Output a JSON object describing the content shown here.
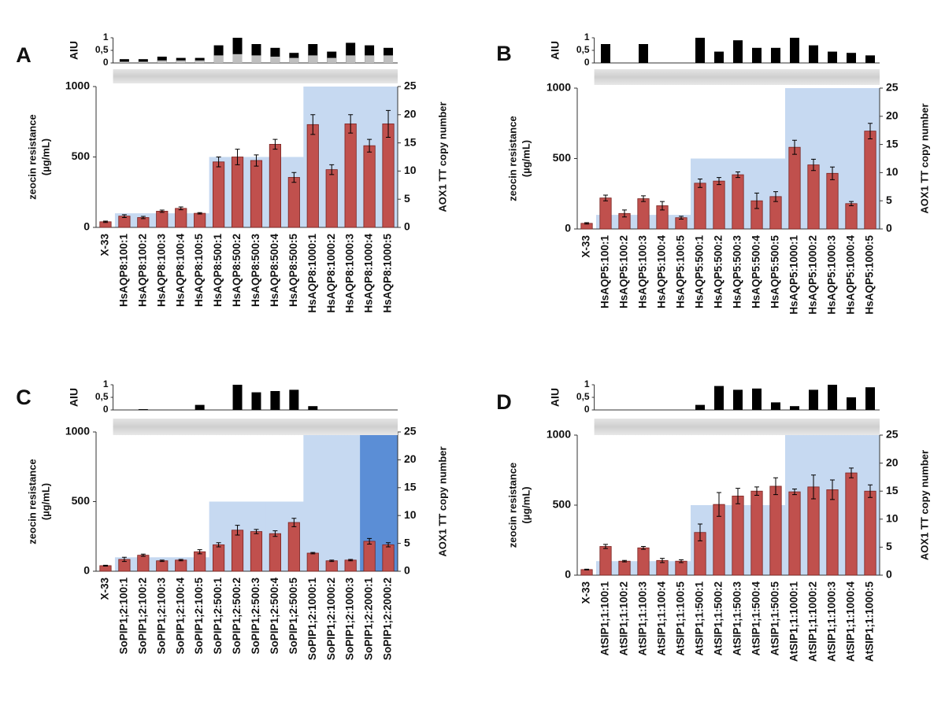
{
  "chart_data": [
    {
      "type": "bar",
      "panel": "A",
      "categories": [
        "X-33",
        "HsAQP8:100:1",
        "HsAQP8:100:2",
        "HsAQP8:100:3",
        "HsAQP8:100:4",
        "HsAQP8:100:5",
        "HsAQP8:500:1",
        "HsAQP8:500:2",
        "HsAQP8:500:3",
        "HsAQP8:500:4",
        "HsAQP8:500:5",
        "HsAQP8:1000:1",
        "HsAQP8:1000:2",
        "HsAQP8:1000:3",
        "HsAQP8:1000:4",
        "HsAQP8:1000:5"
      ],
      "values": [
        40,
        80,
        70,
        115,
        135,
        100,
        465,
        500,
        475,
        590,
        355,
        730,
        410,
        735,
        580,
        735
      ],
      "errors": [
        5,
        10,
        8,
        8,
        10,
        5,
        35,
        55,
        40,
        35,
        35,
        70,
        35,
        65,
        45,
        95
      ],
      "color": "#c0504d",
      "selection": {
        "values": [
          null,
          100,
          100,
          100,
          100,
          100,
          500,
          500,
          500,
          500,
          500,
          1000,
          1000,
          1000,
          1000,
          1000
        ],
        "color": "#c6d9f1",
        "overflow_color": "#5b8ed6"
      },
      "ylabel": [
        "zeocin resistance",
        "(µg/mL)"
      ],
      "ylim": [
        0,
        1000
      ],
      "yticks": [
        0,
        500,
        1000
      ],
      "y2label": "AOX1 TT copy number",
      "y2lim": [
        0,
        25
      ],
      "y2ticks": [
        0,
        5,
        10,
        15,
        20,
        25
      ],
      "aiu": {
        "label": "AIU",
        "ylim": [
          0,
          1
        ],
        "yticks": [
          0,
          {
            "value": 0.5,
            "label": "0,5"
          },
          1
        ],
        "values": [
          null,
          0.15,
          0.15,
          0.25,
          0.2,
          0.2,
          0.7,
          1.0,
          0.75,
          0.6,
          0.4,
          0.75,
          0.45,
          0.8,
          0.7,
          0.6
        ],
        "color": "#000000",
        "values2": [
          null,
          0.05,
          0.05,
          0.1,
          0.1,
          0.1,
          0.3,
          0.35,
          0.3,
          0.25,
          0.2,
          0.3,
          0.2,
          0.3,
          0.3,
          0.3
        ],
        "color2": "#bfbfbf"
      }
    },
    {
      "type": "bar",
      "panel": "B",
      "categories": [
        "X-33",
        "HsAQP5:100:1",
        "HsAQP5:100:2",
        "HsAQP5:100:3",
        "HsAQP5:100:4",
        "HsAQP5:100:5",
        "HsAQP5:500:1",
        "HsAQP5:500:2",
        "HsAQP5:500:3",
        "HsAQP5:500:4",
        "HsAQP5:500:5",
        "HsAQP5:1000:1",
        "HsAQP5:1000:2",
        "HsAQP5:1000:3",
        "HsAQP5:1000:4",
        "HsAQP5:1000:5"
      ],
      "values": [
        40,
        220,
        110,
        215,
        165,
        80,
        325,
        340,
        385,
        200,
        230,
        580,
        455,
        395,
        180,
        695
      ],
      "errors": [
        5,
        20,
        25,
        20,
        30,
        10,
        30,
        25,
        20,
        55,
        35,
        50,
        40,
        45,
        15,
        55
      ],
      "color": "#c0504d",
      "selection": {
        "values": [
          null,
          100,
          100,
          100,
          100,
          100,
          500,
          500,
          500,
          500,
          500,
          1000,
          1000,
          1000,
          1000,
          1000
        ],
        "color": "#c6d9f1",
        "overflow_color": "#5b8ed6"
      },
      "ylabel": [
        "zeocin resistance",
        "(µg/mL)"
      ],
      "ylim": [
        0,
        1000
      ],
      "yticks": [
        0,
        500,
        1000
      ],
      "y2label": "AOX1 TT copy number",
      "y2lim": [
        0,
        25
      ],
      "y2ticks": [
        0,
        5,
        10,
        15,
        20,
        25
      ],
      "aiu": {
        "label": "AIU",
        "ylim": [
          0,
          1
        ],
        "yticks": [
          0,
          {
            "value": 0.5,
            "label": "0,5"
          },
          1
        ],
        "values": [
          null,
          0.75,
          0,
          0.75,
          0,
          0,
          1.0,
          0.45,
          0.9,
          0.6,
          0.6,
          1.0,
          0.7,
          0.45,
          0.4,
          0.3
        ],
        "color": "#000000"
      }
    },
    {
      "type": "bar",
      "panel": "C",
      "categories": [
        "X-33",
        "SoPIP1;2:100:1",
        "SoPIP1;2:100:2",
        "SoPIP1;2:100:3",
        "SoPIP1;2:100:4",
        "SoPIP1;2:100:5",
        "SoPIP1;2:500:1",
        "SoPIP1;2:500:2",
        "SoPIP1;2:500:3",
        "SoPIP1;2:500:4",
        "SoPIP1;2:500:5",
        "SoPIP1;2:1000:1",
        "SoPIP1;2:1000:2",
        "SoPIP1;2:1000:3",
        "SoPIP1;2:2000:1",
        "SoPIP1;2:2000:2"
      ],
      "values": [
        40,
        85,
        115,
        75,
        80,
        140,
        190,
        295,
        285,
        270,
        350,
        130,
        75,
        80,
        215,
        190
      ],
      "errors": [
        3,
        15,
        8,
        5,
        5,
        15,
        15,
        35,
        15,
        20,
        30,
        5,
        5,
        5,
        20,
        15
      ],
      "color": "#c0504d",
      "selection": {
        "values": [
          null,
          100,
          100,
          100,
          100,
          100,
          500,
          500,
          500,
          500,
          500,
          1000,
          1000,
          1000,
          2000,
          2000
        ],
        "color": "#c6d9f1",
        "overflow_color": "#5b8ed6"
      },
      "ylabel": [
        "zeocin resistance",
        "(µg/mL)"
      ],
      "ylim": [
        0,
        1000
      ],
      "yticks": [
        0,
        500,
        1000
      ],
      "y2label": "AOX1 TT copy number",
      "y2lim": [
        0,
        25
      ],
      "y2ticks": [
        0,
        5,
        10,
        15,
        20,
        25
      ],
      "aiu": {
        "label": "AIU",
        "ylim": [
          0,
          1
        ],
        "yticks": [
          0,
          {
            "value": 0.5,
            "label": "0,5"
          },
          1
        ],
        "values": [
          null,
          0,
          0.03,
          0,
          0,
          0.2,
          0,
          1.0,
          0.7,
          0.75,
          0.8,
          0.15,
          0,
          0,
          0,
          0
        ],
        "color": "#000000"
      }
    },
    {
      "type": "bar",
      "panel": "D",
      "categories": [
        "X-33",
        "AtSIP1;1:100:1",
        "AtSIP1;1:100:2",
        "AtSIP1;1:100:3",
        "AtSIP1;1:100:4",
        "AtSIP1;1:100:5",
        "AtSIP1;1:500:1",
        "AtSIP1;1:500:2",
        "AtSIP1;1:500:3",
        "AtSIP1;1:500:4",
        "AtSIP1;1:500:5",
        "AtSIP1;1:1000:1",
        "AtSIP1;1:1000:2",
        "AtSIP1;1:1000:3",
        "AtSIP1;1:1000:4",
        "AtSIP1;1:1000:5"
      ],
      "values": [
        40,
        205,
        100,
        195,
        105,
        100,
        305,
        505,
        565,
        600,
        635,
        595,
        630,
        610,
        730,
        600
      ],
      "errors": [
        3,
        15,
        5,
        10,
        15,
        10,
        60,
        85,
        55,
        30,
        60,
        20,
        85,
        70,
        35,
        45
      ],
      "color": "#c0504d",
      "selection": {
        "values": [
          null,
          100,
          100,
          100,
          100,
          100,
          500,
          500,
          500,
          500,
          500,
          1000,
          1000,
          1000,
          1000,
          1000
        ],
        "color": "#c6d9f1",
        "overflow_color": "#5b8ed6"
      },
      "ylabel": [
        "zeocin resistance",
        "(µg/mL)"
      ],
      "ylim": [
        0,
        1000
      ],
      "yticks": [
        0,
        500,
        1000
      ],
      "y2label": "AOX1 TT copy number",
      "y2lim": [
        0,
        25
      ],
      "y2ticks": [
        0,
        5,
        10,
        15,
        20,
        25
      ],
      "aiu": {
        "label": "AIU",
        "ylim": [
          0,
          1
        ],
        "yticks": [
          0,
          {
            "value": 0.5,
            "label": "0,5"
          },
          1
        ],
        "values": [
          null,
          0,
          0,
          0,
          0,
          0,
          0.2,
          0.95,
          0.8,
          0.85,
          0.3,
          0.15,
          0.8,
          1.0,
          0.5,
          0.9
        ],
        "color": "#000000"
      }
    }
  ]
}
